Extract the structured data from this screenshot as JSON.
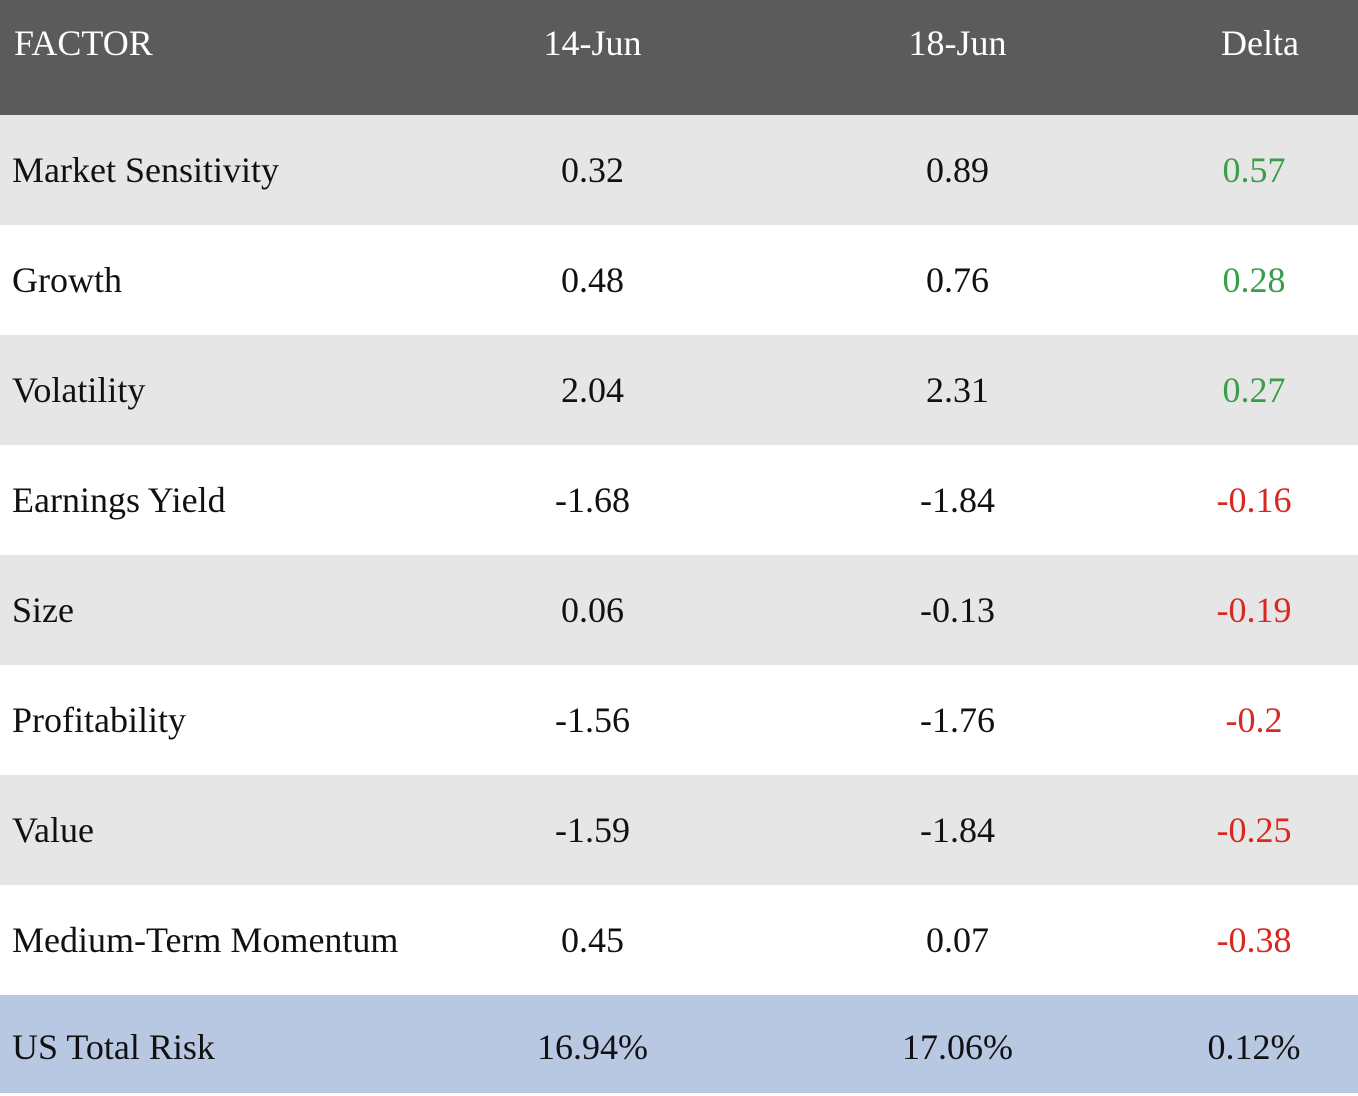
{
  "table": {
    "columns": [
      "FACTOR",
      "14-Jun",
      "18-Jun",
      "Delta"
    ],
    "rows": [
      {
        "factor": "Market Sensitivity",
        "d1": "0.32",
        "d2": "0.89",
        "delta": "0.57",
        "delta_sign": "positive"
      },
      {
        "factor": "Growth",
        "d1": "0.48",
        "d2": "0.76",
        "delta": "0.28",
        "delta_sign": "positive"
      },
      {
        "factor": "Volatility",
        "d1": "2.04",
        "d2": "2.31",
        "delta": "0.27",
        "delta_sign": "positive"
      },
      {
        "factor": "Earnings Yield",
        "d1": "-1.68",
        "d2": "-1.84",
        "delta": "-0.16",
        "delta_sign": "negative"
      },
      {
        "factor": "Size",
        "d1": "0.06",
        "d2": "-0.13",
        "delta": "-0.19",
        "delta_sign": "negative"
      },
      {
        "factor": "Profitability",
        "d1": "-1.56",
        "d2": "-1.76",
        "delta": "-0.2",
        "delta_sign": "negative"
      },
      {
        "factor": "Value",
        "d1": "-1.59",
        "d2": "-1.84",
        "delta": "-0.25",
        "delta_sign": "negative"
      },
      {
        "factor": "Medium-Term Momentum",
        "d1": "0.45",
        "d2": "0.07",
        "delta": "-0.38",
        "delta_sign": "negative"
      }
    ],
    "total": {
      "factor": "US Total Risk",
      "d1": "16.94%",
      "d2": "17.06%",
      "delta": "0.12%"
    }
  },
  "colors": {
    "header_bg": "#5b5b5b",
    "shaded_row": "#e6e6e6",
    "total_row": "#b8c8e3",
    "positive": "#3a9d4a",
    "negative": "#d9281f"
  }
}
